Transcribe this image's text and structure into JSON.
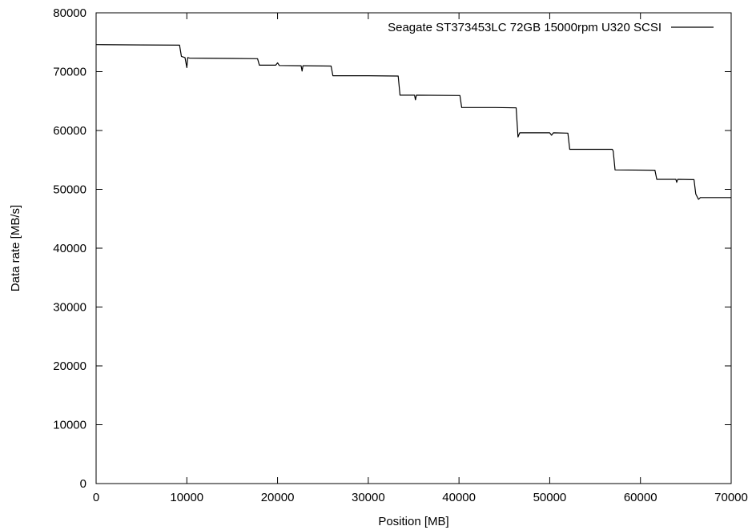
{
  "chart_data": {
    "type": "line",
    "title": "",
    "xlabel": "Position [MB]",
    "ylabel": "Data rate [MB/s]",
    "xlim": [
      0,
      70000
    ],
    "ylim": [
      0,
      80000
    ],
    "x_ticks": [
      0,
      10000,
      20000,
      30000,
      40000,
      50000,
      60000,
      70000
    ],
    "y_ticks": [
      0,
      10000,
      20000,
      30000,
      40000,
      50000,
      60000,
      70000,
      80000
    ],
    "x_tick_labels": [
      "0",
      "10000",
      "20000",
      "30000",
      "40000",
      "50000",
      "60000",
      "70000"
    ],
    "y_tick_labels": [
      "0",
      "10000",
      "20000",
      "30000",
      "40000",
      "50000",
      "60000",
      "70000",
      "80000"
    ],
    "grid": false,
    "legend_position": "top-right",
    "series": [
      {
        "name": "Seagate ST373453LC 72GB 15000rpm U320 SCSI",
        "color": "#000000",
        "x": [
          0,
          5000,
          9200,
          9400,
          9800,
          10000,
          10100,
          10300,
          15000,
          17800,
          18000,
          19800,
          20000,
          20200,
          22600,
          22700,
          22800,
          25900,
          26100,
          30000,
          33300,
          33500,
          35100,
          35200,
          35300,
          40100,
          40300,
          44000,
          46300,
          46500,
          46700,
          50000,
          50200,
          50400,
          52000,
          52200,
          56900,
          57000,
          57200,
          61600,
          61800,
          63900,
          64000,
          64100,
          65900,
          66100,
          66400,
          66600,
          70000
        ],
        "y": [
          74600,
          74550,
          74500,
          72600,
          72400,
          70700,
          72400,
          72300,
          72250,
          72200,
          71100,
          71100,
          71500,
          71050,
          71000,
          70100,
          71000,
          70950,
          69300,
          69300,
          69250,
          66000,
          66000,
          65200,
          66000,
          65950,
          63900,
          63900,
          63850,
          58900,
          59600,
          59600,
          59200,
          59600,
          59550,
          56800,
          56800,
          56500,
          53300,
          53250,
          51700,
          51700,
          51200,
          51700,
          51650,
          49200,
          48300,
          48600,
          48600
        ]
      }
    ]
  }
}
